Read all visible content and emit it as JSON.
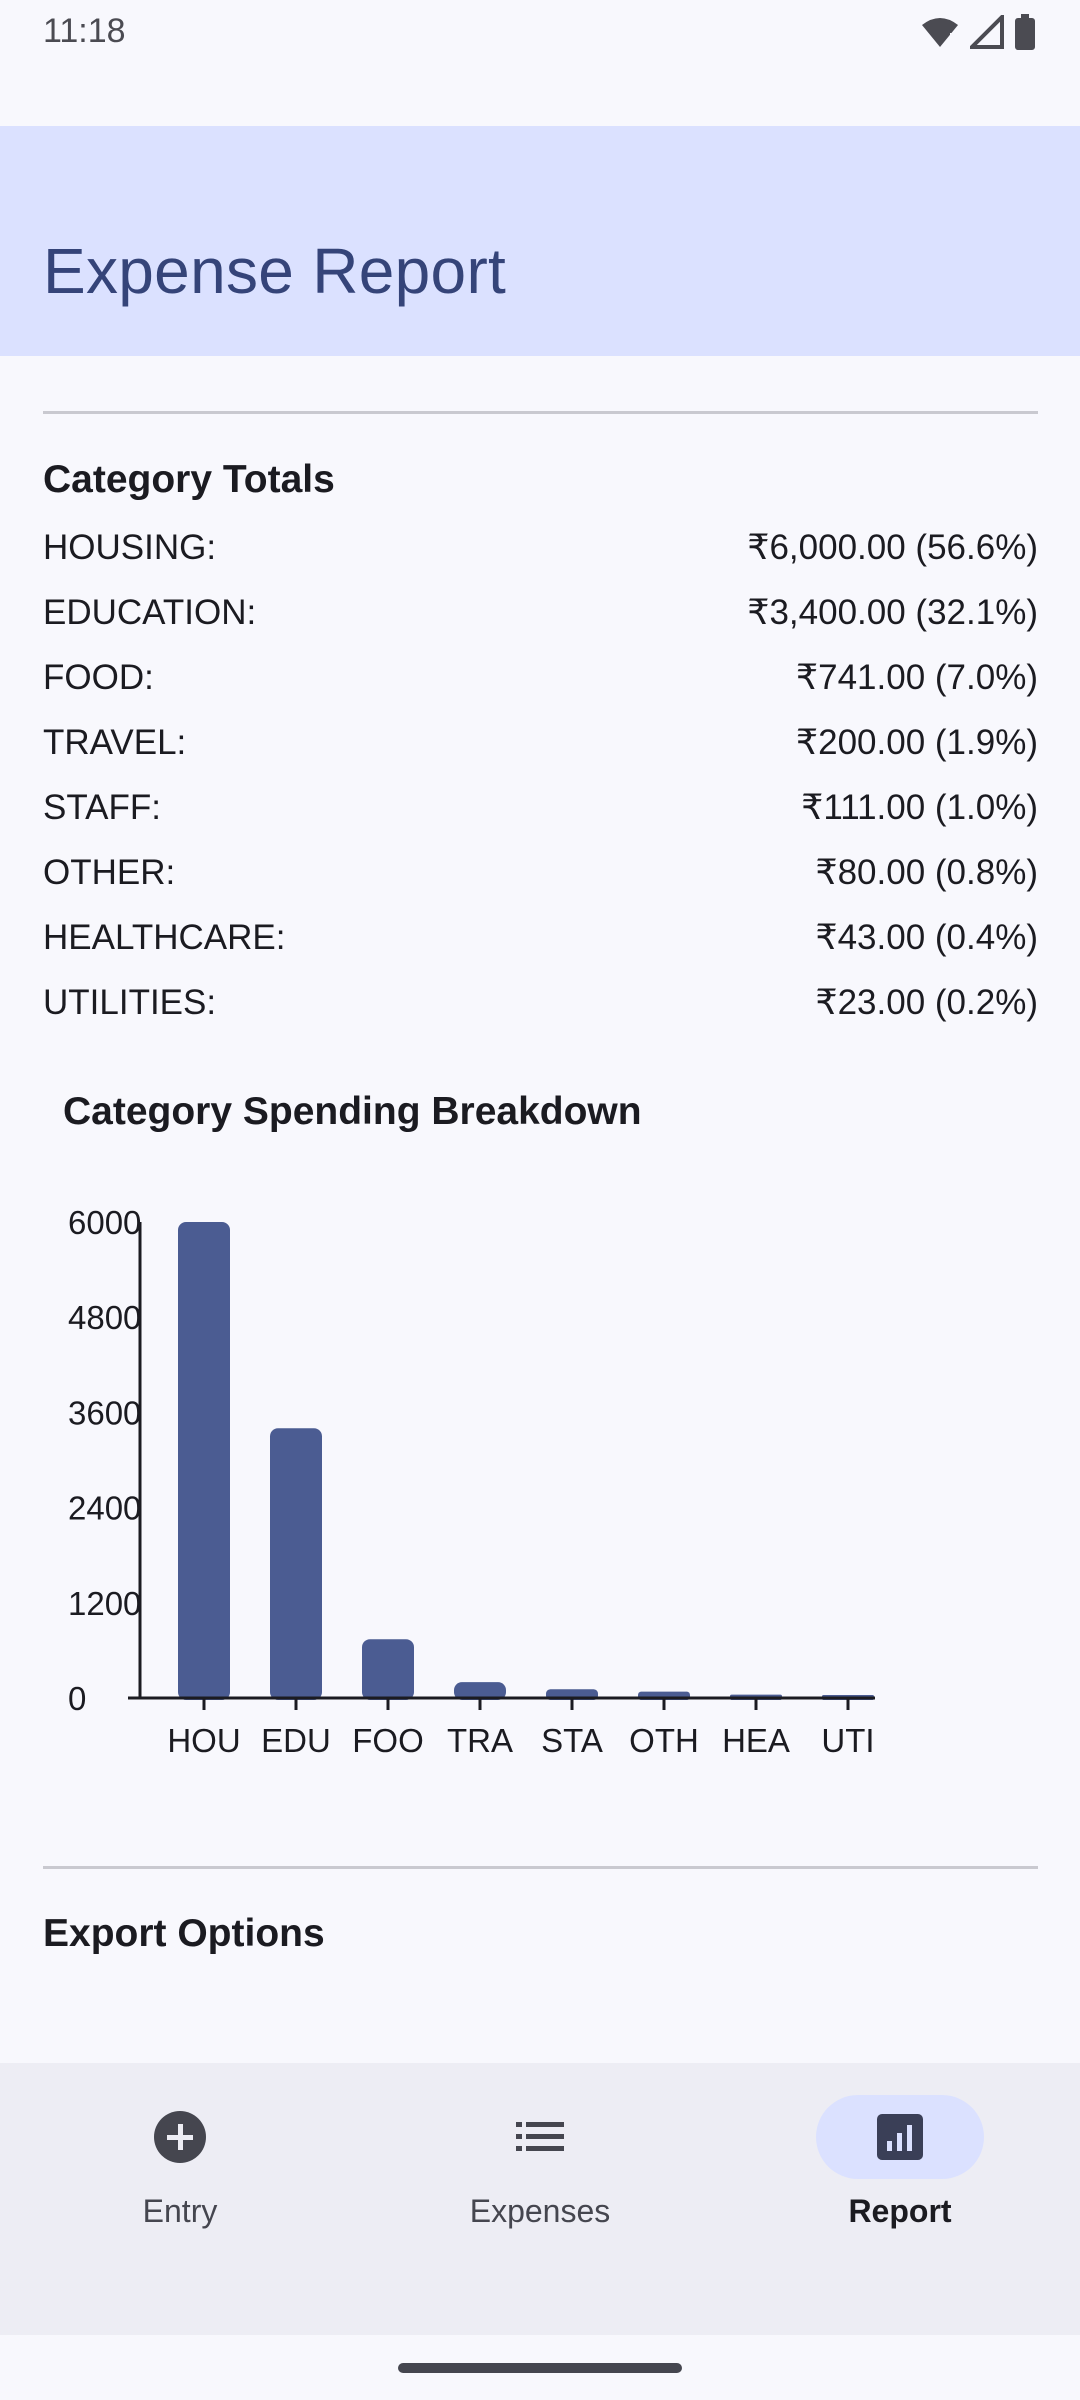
{
  "status_bar": {
    "time": "11:18"
  },
  "app_bar": {
    "title": "Expense Report"
  },
  "category_totals": {
    "title": "Category Totals",
    "rows": [
      {
        "category": "HOUSING:",
        "amount": "₹6,000.00 (56.6%)"
      },
      {
        "category": "EDUCATION:",
        "amount": "₹3,400.00 (32.1%)"
      },
      {
        "category": "FOOD:",
        "amount": "₹741.00 (7.0%)"
      },
      {
        "category": "TRAVEL:",
        "amount": "₹200.00 (1.9%)"
      },
      {
        "category": "STAFF:",
        "amount": "₹111.00 (1.0%)"
      },
      {
        "category": "OTHER:",
        "amount": "₹80.00 (0.8%)"
      },
      {
        "category": "HEALTHCARE:",
        "amount": "₹43.00 (0.4%)"
      },
      {
        "category": "UTILITIES:",
        "amount": "₹23.00 (0.2%)"
      }
    ]
  },
  "chart_data": {
    "type": "bar",
    "title": "Category Spending Breakdown",
    "categories": [
      "HOU",
      "EDU",
      "FOO",
      "TRA",
      "STA",
      "OTH",
      "HEA",
      "UTI"
    ],
    "values": [
      6000,
      3400,
      741,
      200,
      111,
      80,
      43,
      23
    ],
    "yticks": [
      "0",
      "1200",
      "2400",
      "3600",
      "4800",
      "6000"
    ],
    "ylim": [
      0,
      6000
    ],
    "bar_color": "#4b5c92",
    "xlabel": "",
    "ylabel": ""
  },
  "export": {
    "title": "Export Options"
  },
  "bottom_nav": {
    "items": [
      {
        "label": "Entry",
        "icon": "add-circle-icon"
      },
      {
        "label": "Expenses",
        "icon": "list-icon"
      },
      {
        "label": "Report",
        "icon": "bar-chart-icon"
      }
    ],
    "active": "Report"
  },
  "colors": {
    "accent_container": "#dbe1ff",
    "title": "#354479",
    "bar": "#4b5c92"
  }
}
